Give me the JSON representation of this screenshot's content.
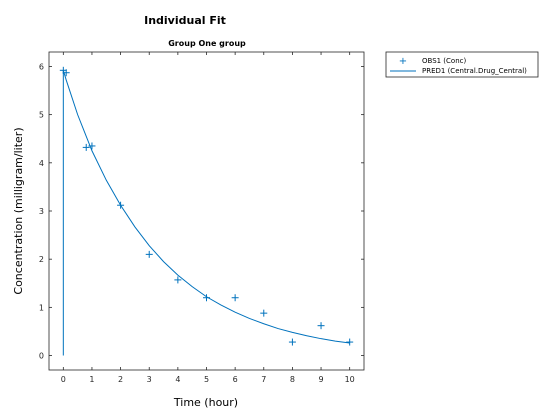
{
  "figure": {
    "title": "Individual Fit",
    "subtitle": "Group One group"
  },
  "chart_data": {
    "type": "scatter",
    "title": "Individual Fit",
    "subtitle": "Group One group",
    "xlabel": "Time (hour)",
    "ylabel": "Concentration (milligram/liter)",
    "xlim": [
      -0.5,
      10.5
    ],
    "ylim": [
      -0.3,
      6.3
    ],
    "xticks": [
      0,
      1,
      2,
      3,
      4,
      5,
      6,
      7,
      8,
      9,
      10
    ],
    "yticks": [
      0,
      1,
      2,
      3,
      4,
      5,
      6
    ],
    "grid": false,
    "legend_placement": "outside-right-top",
    "color": "#0072bd",
    "series": [
      {
        "name": "OBS1 (Conc)",
        "kind": "markers",
        "marker": "plus",
        "x": [
          0,
          0.1,
          0.8,
          1,
          2,
          3,
          4,
          5,
          6,
          7,
          8,
          9,
          10
        ],
        "y": [
          5.92,
          5.87,
          4.32,
          4.35,
          3.12,
          2.1,
          1.57,
          1.2,
          1.2,
          0.88,
          0.28,
          0.62,
          0.28
        ]
      },
      {
        "name": "PRED1 (Central.Drug_Central)",
        "kind": "line",
        "x": [
          0,
          0,
          0.1,
          0.5,
          1,
          1.5,
          2,
          2.5,
          3,
          3.5,
          4,
          4.5,
          5,
          5.5,
          6,
          6.5,
          7,
          7.5,
          8,
          8.5,
          9,
          9.5,
          10
        ],
        "y": [
          0,
          5.92,
          5.72,
          5.0,
          4.25,
          3.64,
          3.12,
          2.67,
          2.28,
          1.95,
          1.67,
          1.43,
          1.22,
          1.05,
          0.9,
          0.77,
          0.66,
          0.56,
          0.48,
          0.41,
          0.35,
          0.3,
          0.26
        ]
      }
    ]
  }
}
